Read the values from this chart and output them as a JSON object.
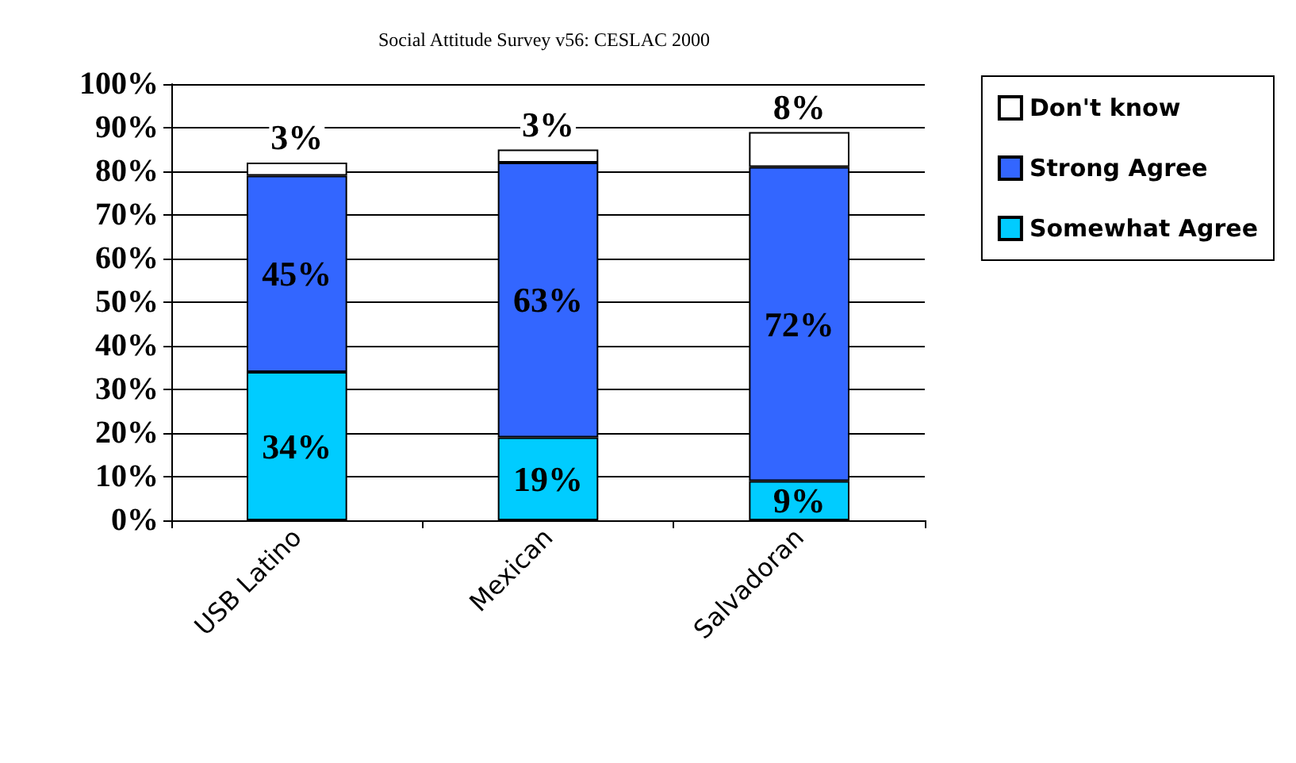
{
  "chart_data": {
    "type": "bar",
    "title": "Social Attitude Survey v56: CESLAC 2000",
    "stacked": true,
    "categories": [
      "USB Latino",
      "Mexican",
      "Salvadoran"
    ],
    "series": [
      {
        "name": "Somewhat Agree",
        "color": "#00ccff",
        "values": [
          34,
          19,
          9
        ],
        "value_labels": [
          "34%",
          "19%",
          "9%"
        ]
      },
      {
        "name": "Strong Agree",
        "color": "#3366ff",
        "values": [
          45,
          63,
          72
        ],
        "value_labels": [
          "45%",
          "63%",
          "72%"
        ]
      },
      {
        "name": "Don't know",
        "color": "#ffffff",
        "values": [
          3,
          3,
          8
        ],
        "value_labels": [
          "3%",
          "3%",
          "8%"
        ]
      }
    ],
    "ylim": [
      0,
      100
    ],
    "yticks": [
      {
        "value": 0,
        "label": "0%"
      },
      {
        "value": 10,
        "label": "10%"
      },
      {
        "value": 20,
        "label": "20%"
      },
      {
        "value": 30,
        "label": "30%"
      },
      {
        "value": 40,
        "label": "40%"
      },
      {
        "value": 50,
        "label": "50%"
      },
      {
        "value": 60,
        "label": "60%"
      },
      {
        "value": 70,
        "label": "70%"
      },
      {
        "value": 80,
        "label": "80%"
      },
      {
        "value": 90,
        "label": "90%"
      },
      {
        "value": 100,
        "label": "100%"
      }
    ],
    "grid": "y",
    "legend": "right"
  }
}
